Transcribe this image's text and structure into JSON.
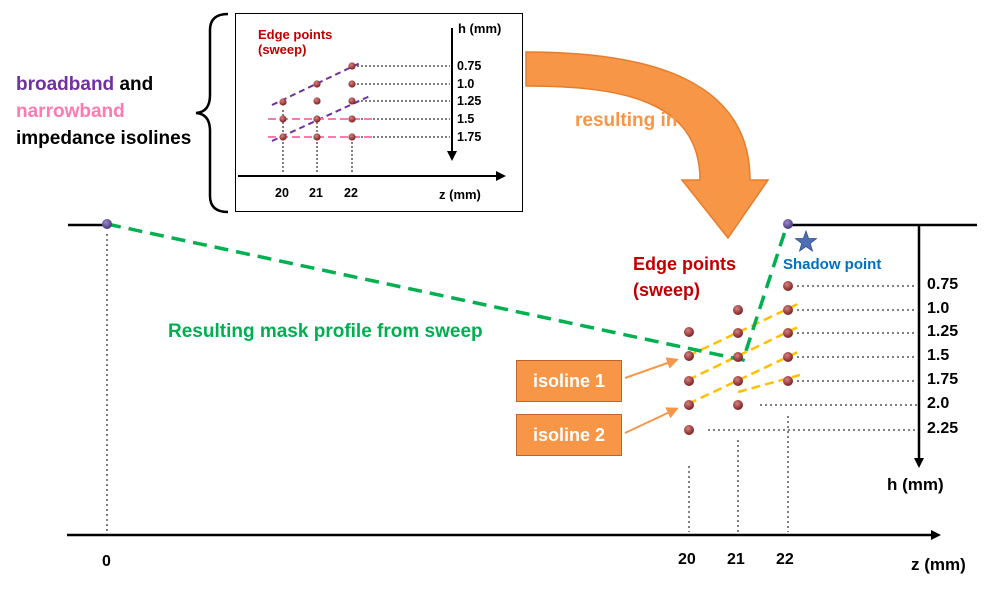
{
  "left_label": {
    "broadband": "broadband",
    "and": " and",
    "narrowband": "narrowband",
    "line3": "impedance isolines"
  },
  "inset": {
    "title_line1": "Edge points",
    "title_line2": "(sweep)",
    "h_axis_label": "h (mm)",
    "z_axis_label": "z (mm)",
    "h_ticks": [
      "0.75",
      "1.0",
      "1.25",
      "1.5",
      "1.75"
    ],
    "z_ticks": [
      "20",
      "21",
      "22"
    ]
  },
  "arrow_label": "resulting in",
  "main": {
    "edge_title_line1": "Edge points",
    "edge_title_line2": "(sweep)",
    "shadow_label": "Shadow point",
    "mask_label": "Resulting mask profile from sweep",
    "isoline1": "isoline 1",
    "isoline2": "isoline 2",
    "h_ticks": [
      "0.75",
      "1.0",
      "1.25",
      "1.5",
      "1.75",
      "2.0",
      "2.25"
    ],
    "h_axis_label": "h (mm)",
    "z_ticks": [
      "0",
      "20",
      "21",
      "22"
    ],
    "z_axis_label": "z (mm)"
  },
  "colors": {
    "broadband": "#7030a0",
    "narrowband": "#ff7ab0",
    "edge_title": "#c00000",
    "orange": "#f79646",
    "green": "#00b050",
    "yellow": "#ffc000",
    "shadow": "#0070c0",
    "point_fill": "#943634"
  }
}
